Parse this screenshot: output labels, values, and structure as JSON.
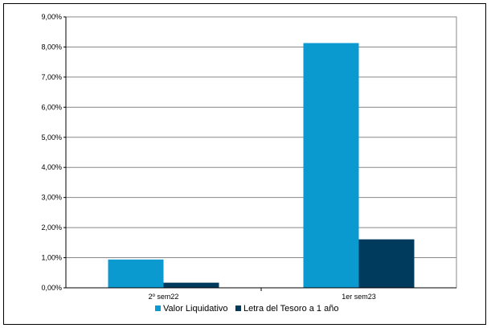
{
  "chart_data": {
    "type": "bar",
    "categories": [
      "2º sem22",
      "1er sem23"
    ],
    "series": [
      {
        "name": "Valor Liquidativo",
        "values": [
          0.94,
          8.13
        ],
        "color": "#0a9ad0"
      },
      {
        "name": "Letra del Tesoro a 1 año",
        "values": [
          0.17,
          1.61
        ],
        "color": "#003a5d"
      }
    ],
    "y_ticks": [
      "0,00%",
      "1,00%",
      "2,00%",
      "3,00%",
      "4,00%",
      "5,00%",
      "6,00%",
      "7,00%",
      "8,00%",
      "9,00%"
    ],
    "ylim": [
      0,
      9
    ],
    "grid": true,
    "legend_position": "bottom"
  }
}
